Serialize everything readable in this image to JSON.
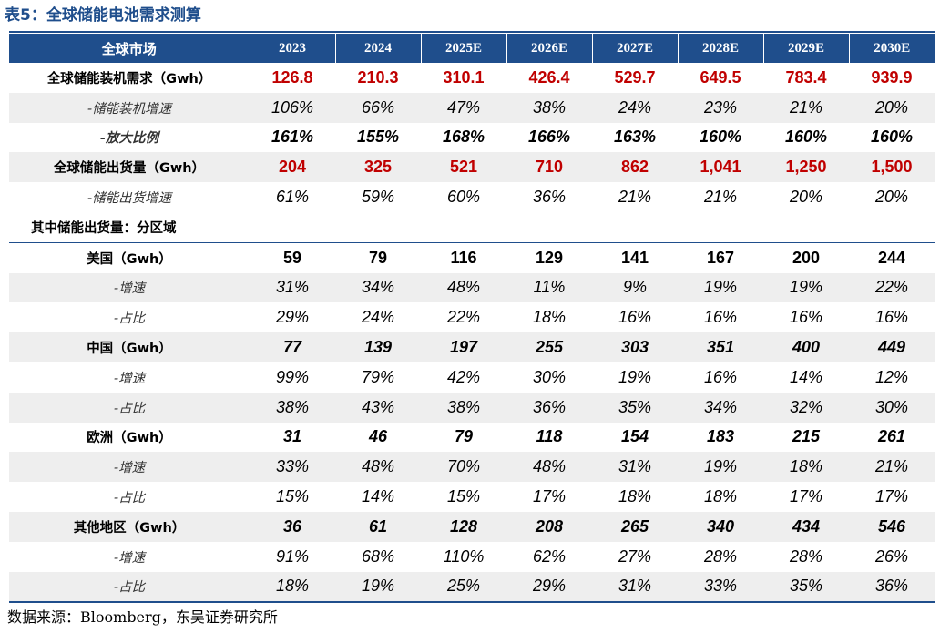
{
  "title": "表5：全球储能电池需求测算",
  "header": {
    "label": "全球市场",
    "years": [
      "2023",
      "2024",
      "2025E",
      "2026E",
      "2027E",
      "2028E",
      "2029E",
      "2030E"
    ]
  },
  "rows": [
    {
      "label": "全球储能装机需求（Gwh）",
      "values": [
        "126.8",
        "210.3",
        "310.1",
        "426.4",
        "529.7",
        "649.5",
        "783.4",
        "939.9"
      ]
    },
    {
      "label": "-储能装机增速",
      "values": [
        "106%",
        "66%",
        "47%",
        "38%",
        "24%",
        "23%",
        "21%",
        "20%"
      ]
    },
    {
      "label": "-放大比例",
      "values": [
        "161%",
        "155%",
        "168%",
        "166%",
        "163%",
        "160%",
        "160%",
        "160%"
      ]
    },
    {
      "label": "全球储能出货量（Gwh）",
      "values": [
        "204",
        "325",
        "521",
        "710",
        "862",
        "1,041",
        "1,250",
        "1,500"
      ]
    },
    {
      "label": "-储能出货增速",
      "values": [
        "61%",
        "59%",
        "60%",
        "36%",
        "21%",
        "21%",
        "20%",
        "20%"
      ]
    },
    {
      "label": "其中储能出货量：分区域",
      "values": []
    },
    {
      "label": "美国（Gwh）",
      "values": [
        "59",
        "79",
        "116",
        "129",
        "141",
        "167",
        "200",
        "244"
      ]
    },
    {
      "label": "-增速",
      "values": [
        "31%",
        "34%",
        "48%",
        "11%",
        "9%",
        "19%",
        "19%",
        "22%"
      ]
    },
    {
      "label": "-占比",
      "values": [
        "29%",
        "24%",
        "22%",
        "18%",
        "16%",
        "16%",
        "16%",
        "16%"
      ]
    },
    {
      "label": "中国（Gwh）",
      "values": [
        "77",
        "139",
        "197",
        "255",
        "303",
        "351",
        "400",
        "449"
      ]
    },
    {
      "label": "-增速",
      "values": [
        "99%",
        "79%",
        "42%",
        "30%",
        "19%",
        "16%",
        "14%",
        "12%"
      ]
    },
    {
      "label": "-占比",
      "values": [
        "38%",
        "43%",
        "38%",
        "36%",
        "35%",
        "34%",
        "32%",
        "30%"
      ]
    },
    {
      "label": "欧洲（Gwh）",
      "values": [
        "31",
        "46",
        "79",
        "118",
        "154",
        "183",
        "215",
        "261"
      ]
    },
    {
      "label": "-增速",
      "values": [
        "33%",
        "48%",
        "70%",
        "48%",
        "31%",
        "19%",
        "18%",
        "21%"
      ]
    },
    {
      "label": "-占比",
      "values": [
        "15%",
        "14%",
        "15%",
        "17%",
        "18%",
        "18%",
        "17%",
        "17%"
      ]
    },
    {
      "label": "其他地区（Gwh）",
      "values": [
        "36",
        "61",
        "128",
        "208",
        "265",
        "340",
        "434",
        "546"
      ]
    },
    {
      "label": "-增速",
      "values": [
        "91%",
        "68%",
        "110%",
        "62%",
        "27%",
        "28%",
        "28%",
        "26%"
      ]
    },
    {
      "label": "-占比",
      "values": [
        "18%",
        "19%",
        "25%",
        "29%",
        "31%",
        "33%",
        "35%",
        "36%"
      ]
    }
  ],
  "source": "数据来源：Bloomberg，东吴证券研究所",
  "colors": {
    "header_bg": "#1f4e8c",
    "highlight": "#c00000",
    "shade": "#eeeeee"
  }
}
